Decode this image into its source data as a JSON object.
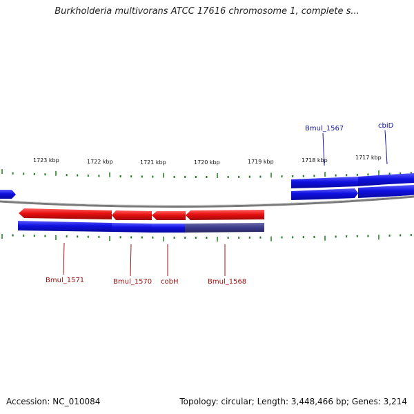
{
  "title": "Burkholderia multivorans ATCC 17616 chromosome 1, complete s...",
  "footer": {
    "accession": "Accession: NC_010084",
    "stats": "Topology: circular; Length: 3,448,466 bp; Genes: 3,214"
  },
  "colors": {
    "forward_cds": "#1010e0",
    "reverse_cds": "#e01010",
    "gene_bar_dim": "#3a3a8a",
    "backbone": "#888888",
    "ticks": "#1a7a1a",
    "forward_label": "#1010a0",
    "reverse_label": "#a01010"
  },
  "scale_labels": [
    "1723 kbp",
    "1722 kbp",
    "1721 kbp",
    "1720 kbp",
    "1719 kbp",
    "1718 kbp",
    "1717 kbp"
  ],
  "gene_labels": {
    "top": [
      "Bmul_1567",
      "cbiD"
    ],
    "bottom": [
      "Bmul_1571",
      "Bmul_1570",
      "cobH",
      "Bmul_1568"
    ]
  }
}
